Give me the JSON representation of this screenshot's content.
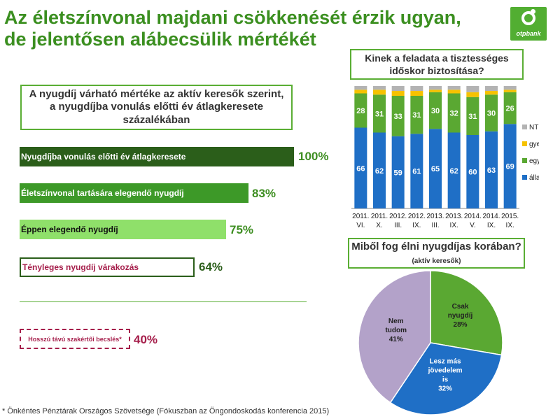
{
  "slide": {
    "title_line1": "Az életszínvonal majdani csökkenését érzik ugyan,",
    "title_line2": "de jelentősen alábecsülik mértékét",
    "logo_text": "otpbank",
    "footnote": "* Önkéntes Pénztárak Országos Szövetsége (Fókuszban az Öngondoskodás konferencia 2015)"
  },
  "left_panel": {
    "question": "A nyugdíj várható mértéke az aktív keresők szerint, a nyugdíjba vonulás előtti év átlagkeresete százalékában",
    "bars": [
      {
        "label": "Nyugdíjba vonulás előtti év átlagkeresete",
        "value_label": "100%",
        "value": 100
      },
      {
        "label": "Életszínvonal tartására elegendő nyugdíj",
        "value_label": "83%",
        "value": 83
      },
      {
        "label": "Éppen elegendő nyugdíj",
        "value_label": "75%",
        "value": 75
      },
      {
        "label": "Tényleges nyugdíj várakozás",
        "value_label": "64%",
        "value": 64
      }
    ],
    "expert_label": "Hosszú távú szakértői becslés*",
    "expert_value_label": "40%",
    "expert_value": 40
  },
  "colors": {
    "allam": "#1f6fc6",
    "egyen": "#5aa832",
    "gyerekei": "#f6c200",
    "NT": "#b3b3b3",
    "pie_csak": "#5aa832",
    "pie_lesz": "#1f6fc6",
    "pie_nem": "#b3a2c9"
  },
  "chart_data": [
    {
      "type": "bar",
      "stacked": true,
      "title": "Kinek a feladata a tisztességes időskor biztosítása?",
      "categories": [
        "2011. VI.",
        "2011. X.",
        "2012. III.",
        "2012. IX.",
        "2013. III.",
        "2013. IX.",
        "2014. V.",
        "2014. IX.",
        "2015. IX."
      ],
      "series": [
        {
          "name": "állam",
          "values": [
            66,
            62,
            59,
            61,
            65,
            62,
            60,
            63,
            69
          ]
        },
        {
          "name": "egyén",
          "values": [
            28,
            31,
            33,
            31,
            30,
            32,
            31,
            30,
            26
          ]
        },
        {
          "name": "gyerekei",
          "values": [
            3,
            4,
            4,
            4,
            2,
            3,
            4,
            3,
            2
          ]
        },
        {
          "name": "NT",
          "values": [
            3,
            3,
            4,
            4,
            3,
            3,
            5,
            4,
            3
          ]
        }
      ],
      "labeled_series": [
        "állam",
        "egyén"
      ],
      "ylim": [
        0,
        100
      ],
      "legend": "right"
    },
    {
      "type": "pie",
      "title": "Miből fog élni nyugdíjas korában?",
      "subtitle": "(aktív keresők)",
      "slices": [
        {
          "label": "Csak nyugdíj",
          "value": 28,
          "value_label": "28%"
        },
        {
          "label": "Lesz más jövedelem is",
          "value": 32,
          "value_label": "32%"
        },
        {
          "label": "Nem tudom",
          "value": 41,
          "value_label": "41%"
        }
      ]
    }
  ]
}
